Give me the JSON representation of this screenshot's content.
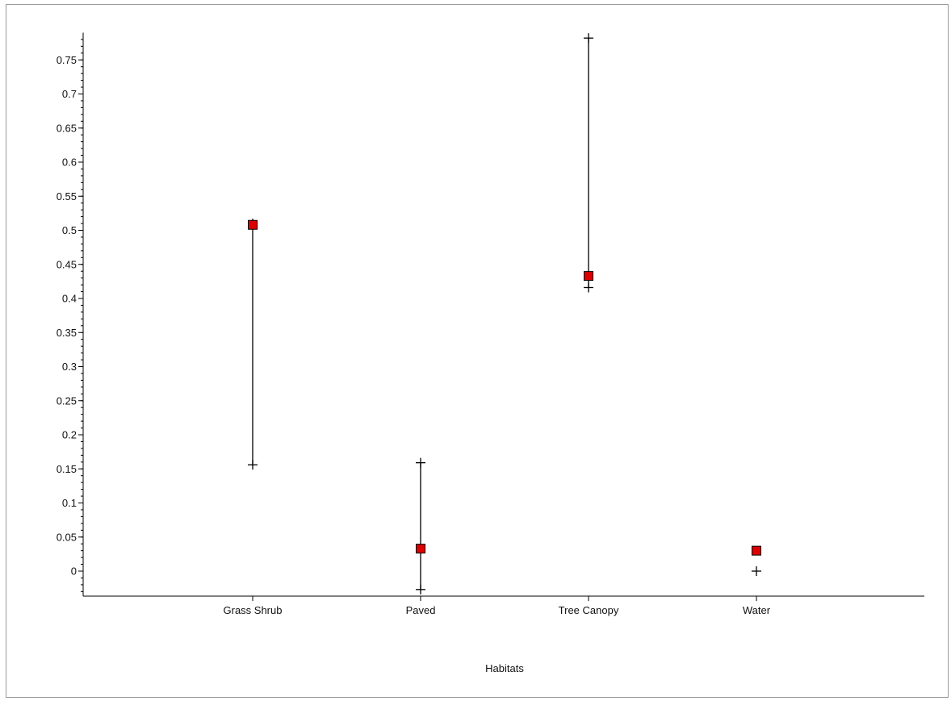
{
  "chart_data": {
    "type": "scatter",
    "title": "",
    "xlabel": "Habitats",
    "ylabel": "",
    "categories": [
      "Grass Shrub",
      "Paved",
      "Tree Canopy",
      "Water"
    ],
    "ylim": [
      -0.035,
      0.79
    ],
    "y_ticks": [
      0,
      0.05,
      0.1,
      0.15,
      0.2,
      0.25,
      0.3,
      0.35,
      0.4,
      0.45,
      0.5,
      0.55,
      0.6,
      0.65,
      0.7,
      0.75
    ],
    "y_tick_labels": [
      "0",
      "0.05",
      "0.1",
      "0.15",
      "0.2",
      "0.25",
      "0.3",
      "0.35",
      "0.4",
      "0.45",
      "0.5",
      "0.55",
      "0.6",
      "0.65",
      "0.7",
      "0.75"
    ],
    "grid": false,
    "legend": "none",
    "series": [
      {
        "marker": "square",
        "color": "#dd0000",
        "values": [
          0.508,
          0.033,
          0.433,
          0.03
        ]
      }
    ],
    "intervals": [
      {
        "category": "Grass Shrub",
        "upper": 0.51,
        "lower": 0.156
      },
      {
        "category": "Paved",
        "upper": 0.159,
        "lower": -0.027
      },
      {
        "category": "Tree Canopy",
        "upper": 0.782,
        "lower": 0.416
      },
      {
        "category": "Water",
        "upper": 0,
        "lower": 0
      }
    ],
    "interval_marker": "plus",
    "interval_color": "#000000",
    "axis_color": "#000000"
  }
}
